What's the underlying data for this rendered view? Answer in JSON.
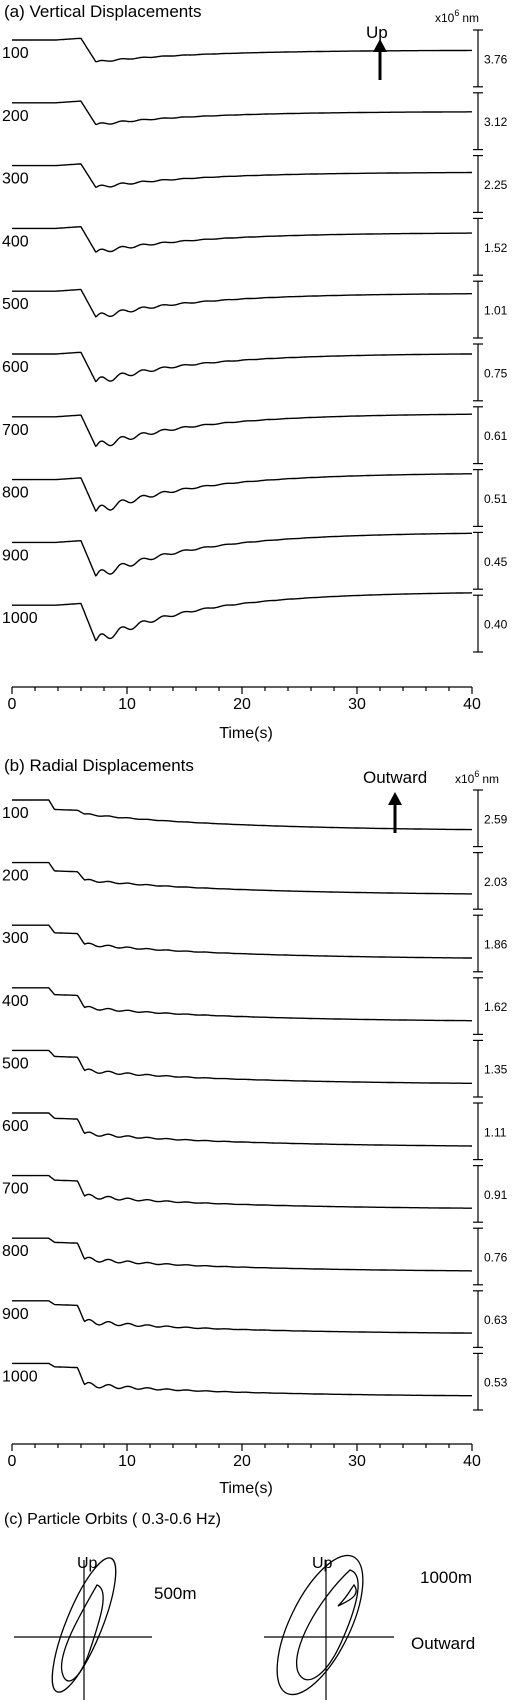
{
  "chart_data": [
    {
      "type": "line",
      "panel": "a",
      "title": "(a) Vertical Displacements",
      "xlabel": "Time(s)",
      "xlim": [
        0,
        40
      ],
      "x_ticks": [
        0,
        10,
        20,
        30,
        40
      ],
      "scale_unit_prefix": "x10",
      "scale_unit_exp": "6",
      "scale_unit_suffix": "nm",
      "direction_label": "Up",
      "series": [
        {
          "name": "100",
          "scale": "3.76",
          "drop": 0.55,
          "osc": 0.025,
          "recover": -0.22
        },
        {
          "name": "200",
          "scale": "3.12",
          "drop": 0.55,
          "osc": 0.035,
          "recover": -0.18
        },
        {
          "name": "300",
          "scale": "2.25",
          "drop": 0.55,
          "osc": 0.045,
          "recover": -0.12
        },
        {
          "name": "400",
          "scale": "1.52",
          "drop": 0.6,
          "osc": 0.06,
          "recover": -0.05
        },
        {
          "name": "500",
          "scale": "1.01",
          "drop": 0.65,
          "osc": 0.08,
          "recover": 0.02
        },
        {
          "name": "600",
          "scale": "0.75",
          "drop": 0.7,
          "osc": 0.1,
          "recover": 0.1
        },
        {
          "name": "700",
          "scale": "0.61",
          "drop": 0.75,
          "osc": 0.11,
          "recover": 0.18
        },
        {
          "name": "800",
          "scale": "0.51",
          "drop": 0.8,
          "osc": 0.12,
          "recover": 0.28
        },
        {
          "name": "900",
          "scale": "0.45",
          "drop": 0.85,
          "osc": 0.12,
          "recover": 0.38
        },
        {
          "name": "1000",
          "scale": "0.40",
          "drop": 0.9,
          "osc": 0.13,
          "recover": 0.48
        }
      ]
    },
    {
      "type": "line",
      "panel": "b",
      "title": "(b) Radial Displacements",
      "xlabel": "Time(s)",
      "xlim": [
        0,
        40
      ],
      "x_ticks": [
        0,
        10,
        20,
        30,
        40
      ],
      "scale_unit_prefix": "x10",
      "scale_unit_exp": "6",
      "scale_unit_suffix": "nm",
      "direction_label": "Outward",
      "series": [
        {
          "name": "100",
          "scale": "2.59",
          "step1": 0.25,
          "step2": 0.1,
          "osc": 0.02,
          "decay": 0.45
        },
        {
          "name": "200",
          "scale": "2.03",
          "step1": 0.22,
          "step2": 0.22,
          "osc": 0.03,
          "decay": 0.4
        },
        {
          "name": "300",
          "scale": "1.86",
          "step1": 0.2,
          "step2": 0.28,
          "osc": 0.04,
          "decay": 0.4
        },
        {
          "name": "400",
          "scale": "1.62",
          "step1": 0.18,
          "step2": 0.32,
          "osc": 0.04,
          "decay": 0.38
        },
        {
          "name": "500",
          "scale": "1.35",
          "step1": 0.16,
          "step2": 0.35,
          "osc": 0.05,
          "decay": 0.37
        },
        {
          "name": "600",
          "scale": "1.11",
          "step1": 0.14,
          "step2": 0.38,
          "osc": 0.05,
          "decay": 0.36
        },
        {
          "name": "700",
          "scale": "0.91",
          "step1": 0.12,
          "step2": 0.4,
          "osc": 0.06,
          "decay": 0.35
        },
        {
          "name": "800",
          "scale": "0.76",
          "step1": 0.11,
          "step2": 0.42,
          "osc": 0.06,
          "decay": 0.34
        },
        {
          "name": "900",
          "scale": "0.63",
          "step1": 0.1,
          "step2": 0.43,
          "osc": 0.07,
          "decay": 0.33
        },
        {
          "name": "1000",
          "scale": "0.53",
          "step1": 0.09,
          "step2": 0.45,
          "osc": 0.07,
          "decay": 0.32
        }
      ]
    },
    {
      "type": "scatter",
      "panel": "c",
      "title": "(c) Particle Orbits ( 0.3-0.6 Hz)",
      "vertical_label": "Up",
      "horizontal_label": "Outward",
      "orbits": [
        {
          "name": "500m"
        },
        {
          "name": "1000m"
        }
      ]
    }
  ]
}
